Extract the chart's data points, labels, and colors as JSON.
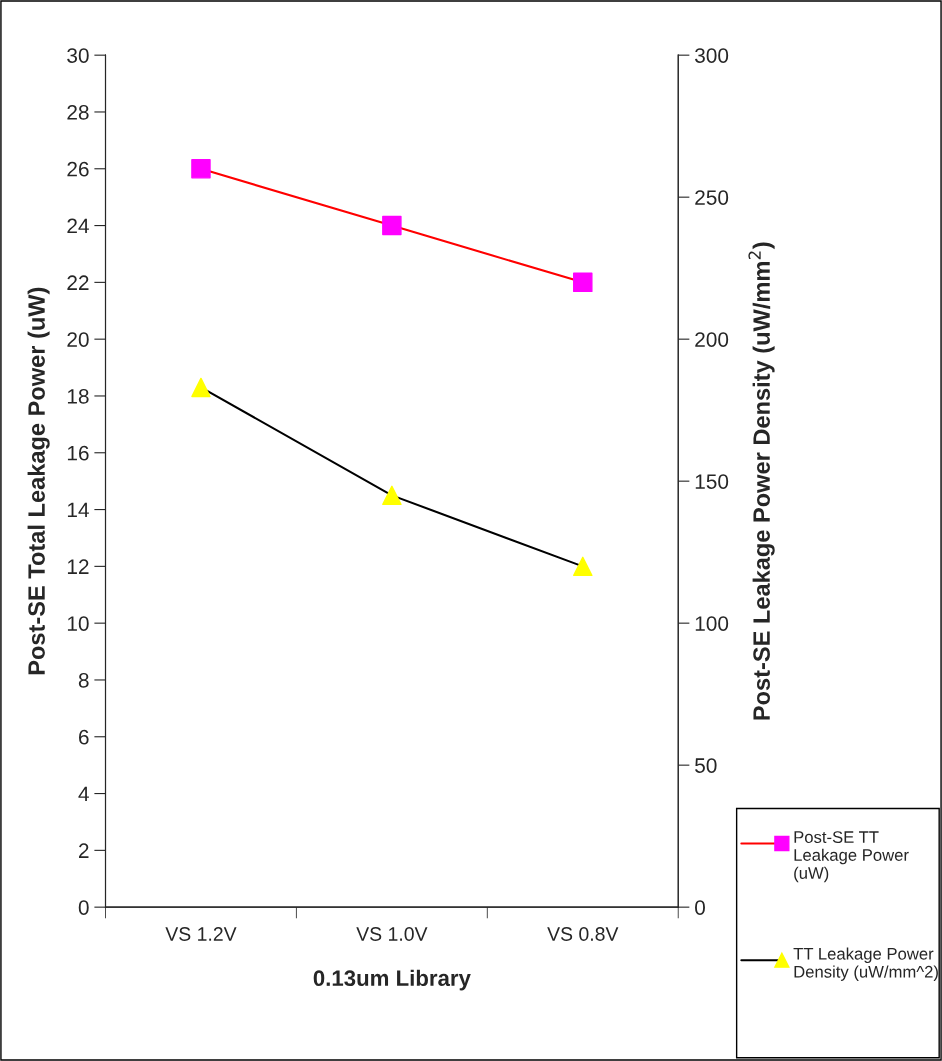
{
  "chart_data": {
    "type": "line",
    "xlabel": "0.13um Library",
    "ylabel": "Post-SE Total Leakage Power (uW)",
    "y2label": "Post-SE Leakage Power Density (uW/mm$^{2}$)",
    "categories": [
      "VS 1.2V",
      "VS 1.0V",
      "VS 0.8V"
    ],
    "series": [
      {
        "name": "Post-SE TT Leakage Power (uW)",
        "color": "#ff0000",
        "colors": [
          "#ff00ff",
          "#ff00ff",
          "#ff00ff"
        ],
        "marker": "square",
        "values": [
          26,
          24,
          22
        ]
      },
      {
        "name": "TT Leakage Power Density (uW/mm^2)",
        "color": "#000000",
        "colors": [
          "#ffff00",
          "#ffff00",
          "#ffff00"
        ],
        "marker": "triangle",
        "axis": "y2",
        "values": [
          183,
          145,
          120
        ]
      }
    ],
    "ylim": [
      0,
      30
    ],
    "yticks": [
      0,
      2,
      4,
      6,
      8,
      10,
      12,
      14,
      16,
      18,
      20,
      22,
      24,
      26,
      28,
      30
    ],
    "y2lim": [
      0,
      300
    ],
    "y2ticks": [
      0,
      50,
      100,
      150,
      200,
      250,
      300
    ],
    "grid": false,
    "legend": "bottom right",
    "line_style": "solid"
  }
}
